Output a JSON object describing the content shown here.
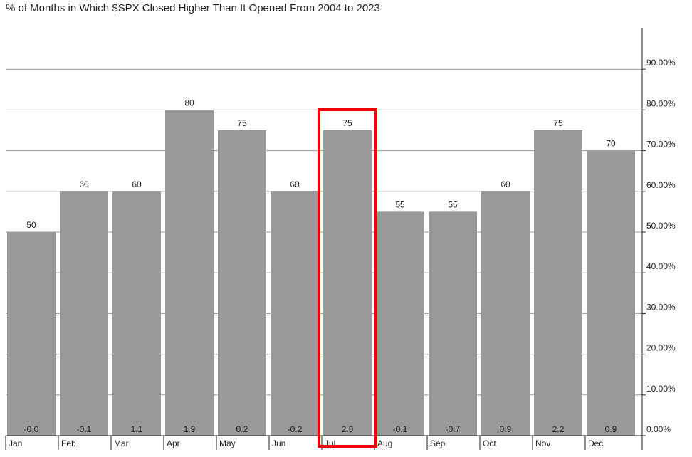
{
  "chart_data": {
    "type": "bar",
    "title": "% of Months in Which $SPX Closed Higher Than It Opened From 2004 to 2023",
    "categories": [
      "Jan",
      "Feb",
      "Mar",
      "Apr",
      "May",
      "Jun",
      "Jul",
      "Aug",
      "Sep",
      "Oct",
      "Nov",
      "Dec"
    ],
    "values": [
      50,
      60,
      60,
      80,
      75,
      60,
      75,
      55,
      55,
      60,
      75,
      70
    ],
    "value_labels": [
      "50",
      "60",
      "60",
      "80",
      "75",
      "60",
      "75",
      "55",
      "55",
      "60",
      "75",
      "70"
    ],
    "bottom_labels": [
      "-0.0",
      "-0.1",
      "1.1",
      "1.9",
      "0.2",
      "-0.2",
      "2.3",
      "-0.1",
      "-0.7",
      "0.9",
      "2.2",
      "0.9"
    ],
    "ylim": [
      0,
      100
    ],
    "yticks": [
      0,
      10,
      20,
      30,
      40,
      50,
      60,
      70,
      80,
      90
    ],
    "ytick_labels": [
      "0.00%",
      "10.00%",
      "20.00%",
      "30.00%",
      "40.00%",
      "50.00%",
      "60.00%",
      "70.00%",
      "80.00%",
      "90.00%"
    ],
    "y_axis_side": "right",
    "grid": true,
    "highlighted_category": "Jul",
    "colors": {
      "bar": "#999999",
      "gridline": "#999999",
      "axis": "#222222",
      "highlight": "#ee0000"
    }
  }
}
